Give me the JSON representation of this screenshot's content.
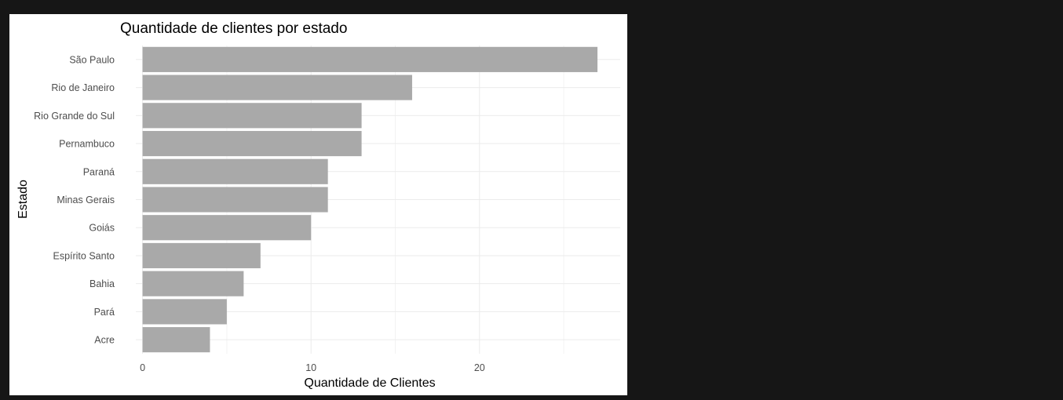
{
  "chart_data": {
    "type": "bar",
    "orientation": "horizontal",
    "title": "Quantidade de clientes por estado",
    "xlabel": "Quantidade de Clientes",
    "ylabel": "Estado",
    "categories": [
      "São Paulo",
      "Rio de Janeiro",
      "Rio Grande do Sul",
      "Pernambuco",
      "Paraná",
      "Minas Gerais",
      "Goiás",
      "Espírito Santo",
      "Bahia",
      "Pará",
      "Acre"
    ],
    "values": [
      27,
      16,
      13,
      13,
      11,
      11,
      10,
      7,
      6,
      5,
      4
    ],
    "xlim": [
      -0.4,
      28.35
    ],
    "xticks": [
      0,
      10,
      20
    ],
    "xtick_labels": [
      "0",
      "10",
      "20"
    ],
    "minor_xticks": [
      5,
      15,
      25
    ],
    "grid": true,
    "legend": "none",
    "colors": {
      "bar": "#a9a9a9",
      "panel": "#ffffff",
      "page": "#161616",
      "grid": "#ebebeb"
    }
  }
}
